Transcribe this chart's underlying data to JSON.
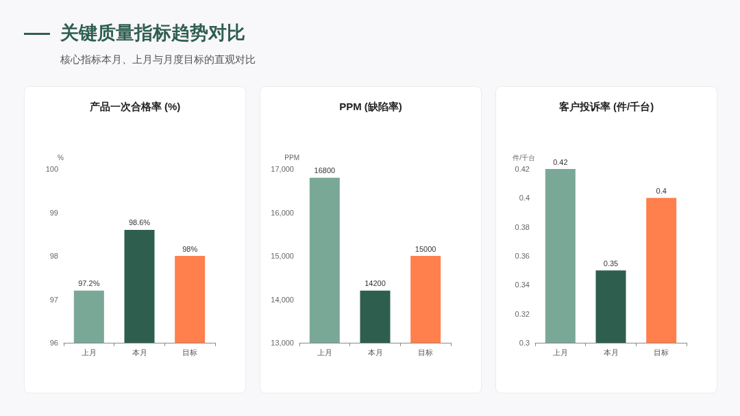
{
  "chart_data": [
    {
      "type": "other",
      "title": "关键质量指标趋势对比",
      "subtitle": "核心指标本月、上月与月度目标的直观对比"
    },
    {
      "type": "bar",
      "title": "产品一次合格率 (%)",
      "ylabel": "%",
      "categories": [
        "上月",
        "本月",
        "目标"
      ],
      "values": [
        97.2,
        98.6,
        98
      ],
      "value_labels": [
        "97.2%",
        "98.6%",
        "98%"
      ],
      "colors": [
        "#7aa897",
        "#2e5e4e",
        "#ff7f4d"
      ],
      "ylim": [
        96,
        100
      ],
      "yticks": [
        96,
        97,
        98,
        99,
        100
      ]
    },
    {
      "type": "bar",
      "title": "PPM (缺陷率)",
      "ylabel": "PPM",
      "categories": [
        "上月",
        "本月",
        "目标"
      ],
      "values": [
        16800,
        14200,
        15000
      ],
      "data_labels": true,
      "colors": [
        "#7aa897",
        "#2e5e4e",
        "#ff7f4d"
      ],
      "ylim": [
        13000,
        17000
      ],
      "yticks": [
        {
          "value": 13000,
          "label": "13,000"
        },
        {
          "value": 14000,
          "label": "14,000"
        },
        {
          "value": 15000,
          "label": "15,000"
        },
        {
          "value": 16000,
          "label": "16,000"
        },
        {
          "value": 17000,
          "label": "17,000"
        }
      ]
    },
    {
      "type": "bar",
      "title": "客户投诉率 (件/千台)",
      "ylabel": "件/千台",
      "categories": [
        "上月",
        "本月",
        "目标"
      ],
      "values": [
        0.42,
        0.35,
        0.4
      ],
      "data_labels": true,
      "colors": [
        "#7aa897",
        "#2e5e4e",
        "#ff7f4d"
      ],
      "ylim": [
        0.3,
        0.42
      ],
      "yticks": [
        0.3,
        0.32,
        0.34,
        0.36,
        0.38,
        0.4,
        0.42
      ]
    }
  ]
}
